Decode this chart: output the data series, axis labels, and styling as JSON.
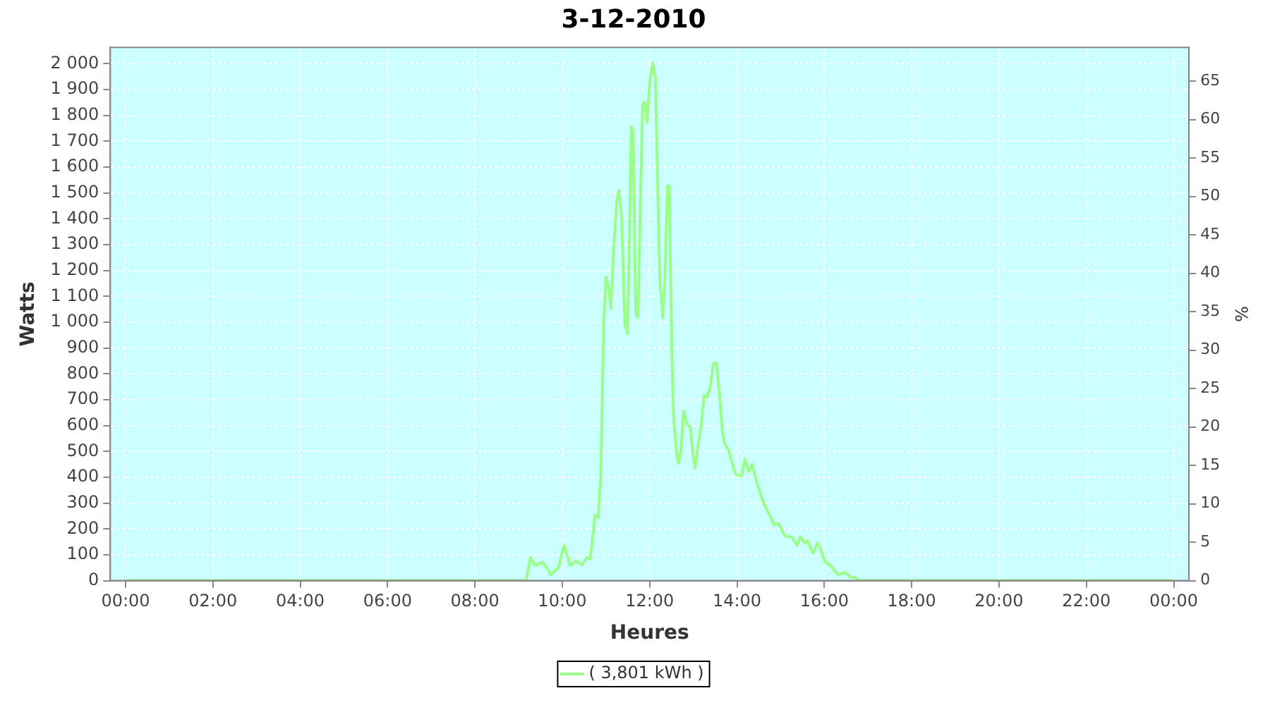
{
  "chart_data": {
    "type": "line",
    "title": "3-12-2010",
    "xlabel": "Heures",
    "ylabel": "Watts",
    "y2label": "%",
    "x": [
      0,
      9.17,
      9.27,
      9.38,
      9.54,
      9.65,
      9.73,
      9.91,
      10.04,
      10.18,
      10.31,
      10.45,
      10.56,
      10.64,
      10.75,
      10.82,
      10.88,
      10.95,
      11.0,
      11.06,
      11.11,
      11.17,
      11.25,
      11.3,
      11.36,
      11.43,
      11.49,
      11.53,
      11.58,
      11.62,
      11.68,
      11.73,
      11.78,
      11.84,
      11.89,
      11.94,
      12.0,
      12.07,
      12.13,
      12.18,
      12.23,
      12.3,
      12.35,
      12.41,
      12.45,
      12.48,
      12.51,
      12.55,
      12.62,
      12.66,
      12.71,
      12.78,
      12.86,
      12.93,
      12.98,
      13.04,
      13.1,
      13.18,
      13.25,
      13.31,
      13.39,
      13.46,
      13.53,
      13.6,
      13.66,
      13.71,
      13.82,
      13.92,
      13.98,
      14.11,
      14.18,
      14.27,
      14.35,
      14.46,
      14.62,
      14.73,
      14.85,
      14.96,
      15.1,
      15.26,
      15.37,
      15.45,
      15.55,
      15.61,
      15.74,
      15.85,
      15.92,
      16.01,
      16.17,
      16.31,
      16.47,
      16.6,
      16.72,
      16.81,
      24
    ],
    "series": [
      {
        "name": "( 3,801 kWh )",
        "color": "#99ff88",
        "values": [
          0,
          0,
          88,
          58,
          72,
          49,
          23,
          49,
          137,
          58,
          75,
          62,
          88,
          84,
          252,
          243,
          401,
          999,
          1175,
          1131,
          1052,
          1263,
          1474,
          1509,
          1404,
          999,
          955,
          1245,
          1756,
          1738,
          1034,
          1017,
          1386,
          1843,
          1852,
          1773,
          1923,
          2002,
          1949,
          1562,
          1175,
          1017,
          1175,
          1527,
          1527,
          1175,
          859,
          630,
          489,
          454,
          498,
          656,
          603,
          595,
          507,
          436,
          516,
          603,
          718,
          709,
          753,
          841,
          841,
          718,
          586,
          533,
          498,
          436,
          410,
          405,
          471,
          422,
          450,
          375,
          296,
          260,
          216,
          220,
          172,
          169,
          137,
          169,
          146,
          155,
          106,
          146,
          120,
          75,
          53,
          23,
          32,
          14,
          11,
          0,
          0
        ]
      }
    ],
    "xlim": [
      -0.35,
      24.35
    ],
    "xticks": [
      {
        "value": 0,
        "label": "00:00"
      },
      {
        "value": 2,
        "label": "02:00"
      },
      {
        "value": 4,
        "label": "04:00"
      },
      {
        "value": 6,
        "label": "06:00"
      },
      {
        "value": 8,
        "label": "08:00"
      },
      {
        "value": 10,
        "label": "10:00"
      },
      {
        "value": 12,
        "label": "12:00"
      },
      {
        "value": 14,
        "label": "14:00"
      },
      {
        "value": 16,
        "label": "16:00"
      },
      {
        "value": 18,
        "label": "18:00"
      },
      {
        "value": 20,
        "label": "20:00"
      },
      {
        "value": 22,
        "label": "22:00"
      },
      {
        "value": 24,
        "label": "00:00"
      }
    ],
    "ylim": [
      0,
      2063
    ],
    "yticks": [
      0,
      100,
      200,
      300,
      400,
      500,
      600,
      700,
      800,
      900,
      {
        "value": 1000,
        "label": "1 000"
      },
      {
        "value": 1100,
        "label": "1 100"
      },
      {
        "value": 1200,
        "label": "1 200"
      },
      {
        "value": 1300,
        "label": "1 300"
      },
      {
        "value": 1400,
        "label": "1 400"
      },
      {
        "value": 1500,
        "label": "1 500"
      },
      {
        "value": 1600,
        "label": "1 600"
      },
      {
        "value": 1700,
        "label": "1 700"
      },
      {
        "value": 1800,
        "label": "1 800"
      },
      {
        "value": 1900,
        "label": "1 900"
      },
      {
        "value": 2000,
        "label": "2 000"
      }
    ],
    "y2lim": [
      0,
      69.4
    ],
    "y2ticks": [
      0,
      5,
      10,
      15,
      20,
      25,
      30,
      35,
      40,
      45,
      50,
      55,
      60,
      65
    ],
    "grid": true,
    "legend": "bottom"
  }
}
